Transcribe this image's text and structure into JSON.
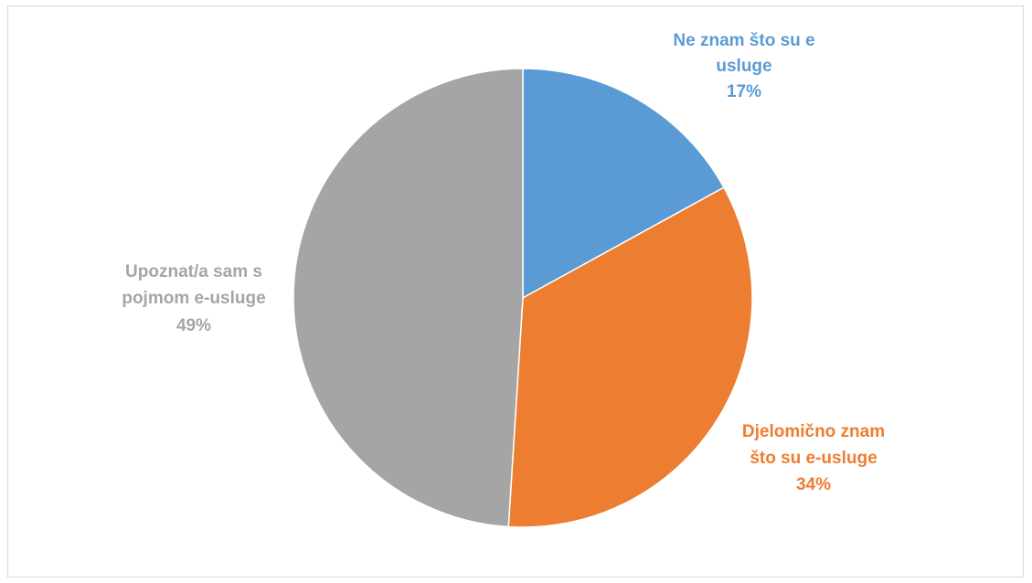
{
  "chart_data": {
    "type": "pie",
    "title": "",
    "slices": [
      {
        "label_lines": [
          "Ne znam što su e",
          "usluge"
        ],
        "percent_label": "17%",
        "value": 17,
        "color": "#5b9bd5"
      },
      {
        "label_lines": [
          "Djelomično znam",
          "što su e-usluge"
        ],
        "percent_label": "34%",
        "value": 34,
        "color": "#ed7d31"
      },
      {
        "label_lines": [
          "Upoznat/a sam s",
          "pojmom e-usluge"
        ],
        "percent_label": "49%",
        "value": 49,
        "color": "#a5a5a5"
      }
    ],
    "legend": "none",
    "start_angle_deg": 0,
    "direction": "clockwise"
  }
}
